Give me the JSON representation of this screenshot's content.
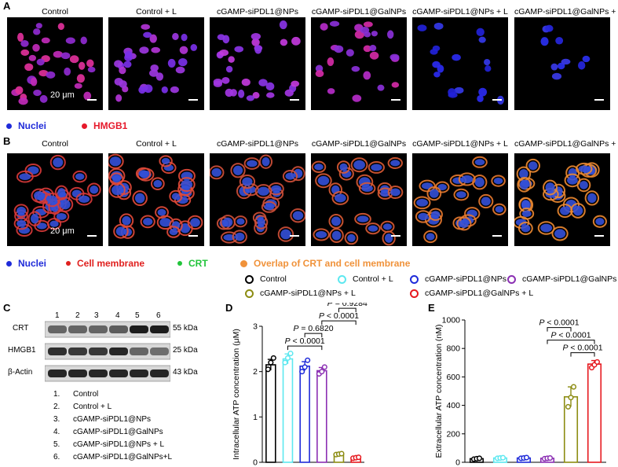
{
  "panels": {
    "A": "A",
    "B": "B",
    "C": "C",
    "D": "D",
    "E": "E"
  },
  "conditions": [
    "Control",
    "Control + L",
    "cGAMP-siPDL1@NPs",
    "cGAMP-siPDL1@GalNPs",
    "cGAMP-siPDL1@NPs + L",
    "cGAMP-siPDL1@GalNPs + L"
  ],
  "scale_bar": "20 μm",
  "legend_a": {
    "nuclei": "Nuclei",
    "hmgb1": "HMGB1"
  },
  "legend_b": {
    "nuclei": "Nuclei",
    "membrane": "Cell membrane",
    "crt": "CRT",
    "overlap": "Overlap of CRT and cell membrane"
  },
  "colors": {
    "nuclei": "#1f2bd9",
    "hmgb1": "#e6192b",
    "membrane": "#e0201e",
    "crt": "#21c43a",
    "overlap": "#f0923a",
    "group_colors": [
      "#000000",
      "#5de8f0",
      "#1f2bd9",
      "#8b2fb3",
      "#8c8c12",
      "#e6191f"
    ]
  },
  "bar_legend": [
    "Control",
    "Control + L",
    "cGAMP-siPDL1@NPs",
    "cGAMP-siPDL1@GalNPs",
    "cGAMP-siPDL1@NPs + L",
    "cGAMP-siPDL1@GalNPs + L"
  ],
  "blot": {
    "lanes": [
      "1",
      "2",
      "3",
      "4",
      "5",
      "6"
    ],
    "rows": [
      {
        "label": "CRT",
        "kda": "55 kDa",
        "intensity": [
          0.55,
          0.55,
          0.55,
          0.6,
          0.95,
          0.95
        ]
      },
      {
        "label": "HMGB1",
        "kda": "25 kDa",
        "intensity": [
          0.85,
          0.8,
          0.8,
          0.9,
          0.55,
          0.5
        ]
      },
      {
        "label": "β-Actin",
        "kda": "43 kDa",
        "intensity": [
          0.9,
          0.9,
          0.9,
          0.9,
          0.9,
          0.9
        ]
      }
    ],
    "key": [
      "1.",
      "2.",
      "3.",
      "4.",
      "5.",
      "6."
    ],
    "key_names": [
      "Control",
      "Control + L",
      "cGAMP-siPDL1@NPs",
      "cGAMP-siPDL1@GalNPs",
      "cGAMP-siPDL1@NPs + L",
      "cGAMP-siPDL1@GalNPs+L"
    ]
  },
  "chart_data": [
    {
      "type": "bar",
      "panel": "D",
      "ylabel": "Intracellular ATP concentration (μM)",
      "ylim": [
        0,
        3
      ],
      "yticks": [
        "0",
        "1",
        "2",
        "3"
      ],
      "values": [
        2.15,
        2.28,
        2.12,
        2.02,
        0.18,
        0.1
      ],
      "points": [
        [
          2.05,
          2.2,
          2.3
        ],
        [
          2.2,
          2.3,
          2.4
        ],
        [
          2.0,
          2.1,
          2.25
        ],
        [
          1.95,
          2.0,
          2.1
        ],
        [
          0.17,
          0.18,
          0.19
        ],
        [
          0.09,
          0.1,
          0.11
        ]
      ],
      "errors": [
        0.12,
        0.11,
        0.1,
        0.07,
        0.01,
        0.01
      ],
      "comparisons": [
        {
          "text": "P < 0.0001",
          "from": 1,
          "to": 3
        },
        {
          "text": "P = 0.6820",
          "from": 2,
          "to": 3
        },
        {
          "text": "P < 0.0001",
          "from": 3,
          "to": 5
        },
        {
          "text": "P = 0.9284",
          "from": 4,
          "to": 5
        }
      ]
    },
    {
      "type": "bar",
      "panel": "E",
      "ylabel": "Extracellular ATP concentration (nM)",
      "ylim": [
        0,
        1000
      ],
      "yticks": [
        "0",
        "200",
        "400",
        "600",
        "800",
        "1000"
      ],
      "values": [
        25,
        30,
        30,
        28,
        460,
        690
      ],
      "points": [
        [
          22,
          25,
          28
        ],
        [
          28,
          30,
          32
        ],
        [
          28,
          30,
          33
        ],
        [
          25,
          28,
          30
        ],
        [
          390,
          455,
          530
        ],
        [
          665,
          685,
          705
        ]
      ],
      "errors": [
        3,
        2,
        3,
        3,
        70,
        25
      ],
      "comparisons": [
        {
          "text": "P < 0.0001",
          "from": 4,
          "to": 5
        },
        {
          "text": "P < 0.0001",
          "from": 3,
          "to": 5
        },
        {
          "text": "P < 0.0001",
          "from": 3,
          "to": 4
        }
      ]
    }
  ]
}
